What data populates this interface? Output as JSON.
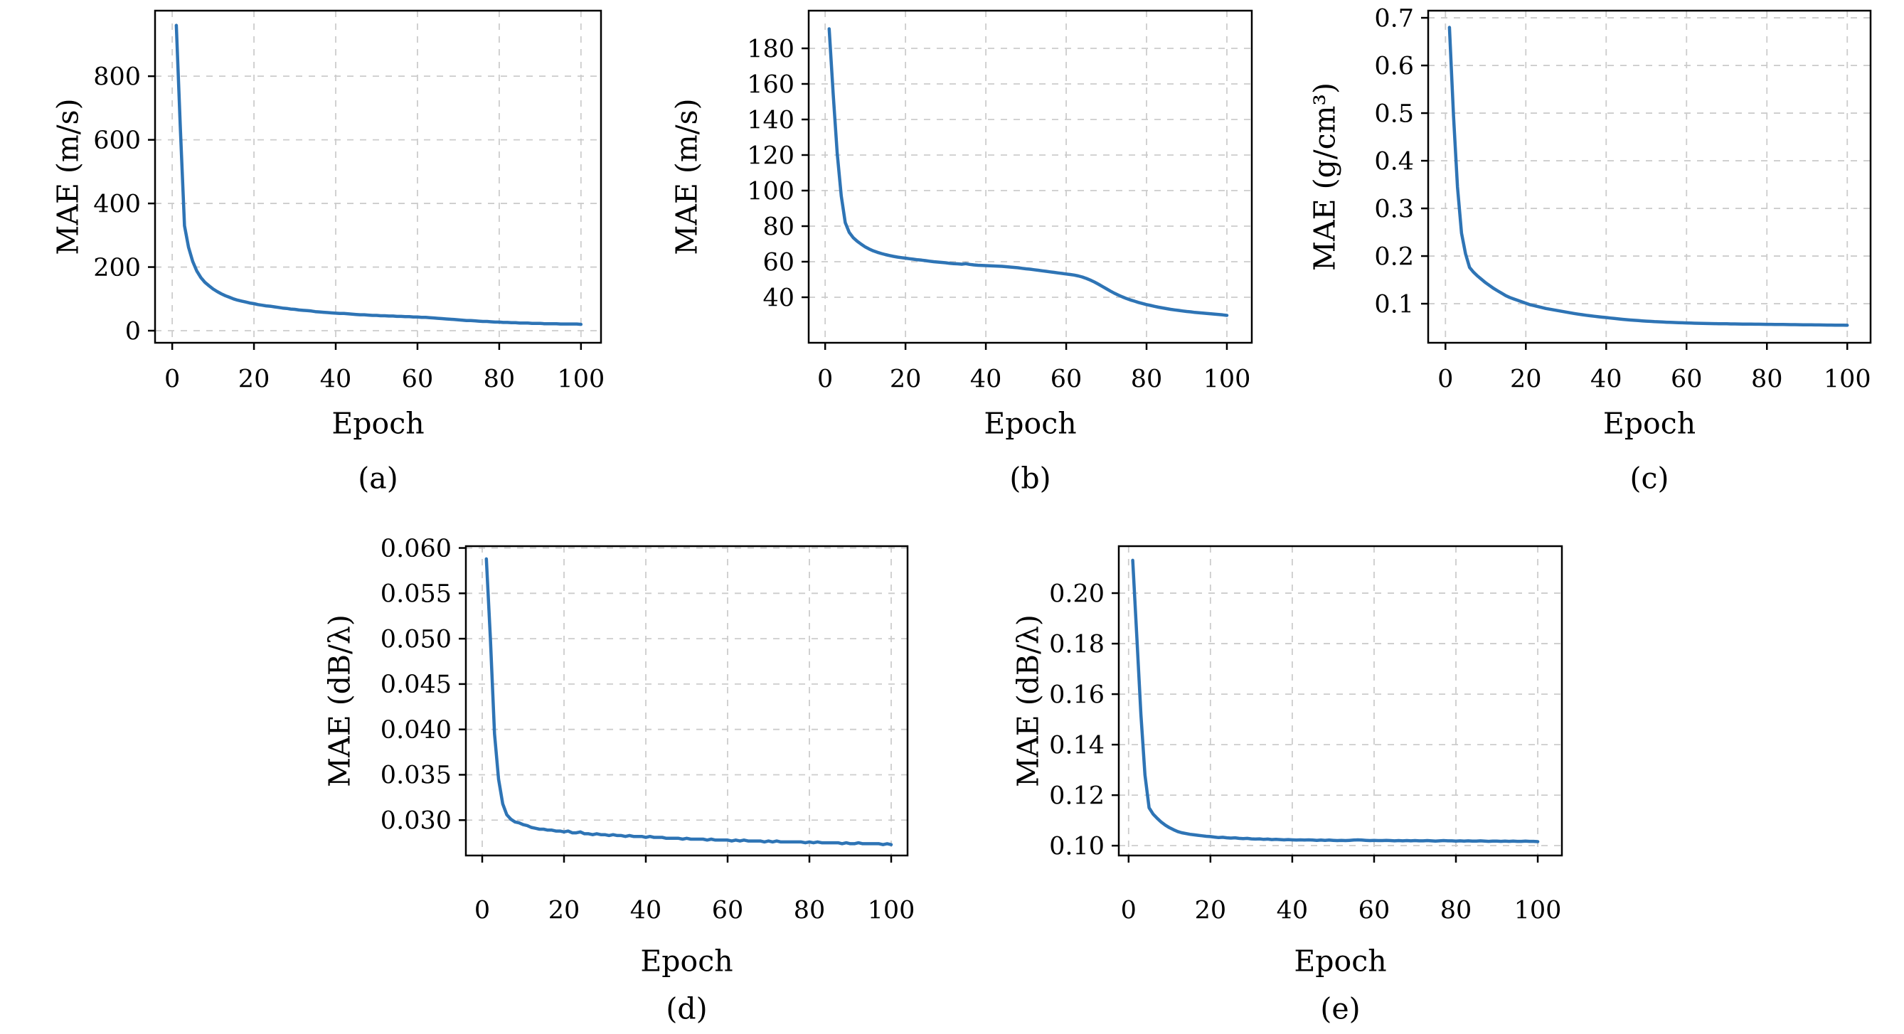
{
  "figure": {
    "description": "Training curves: mean absolute error vs epoch for five predicted quantities",
    "background_color": "#ffffff",
    "line_color": "#2e74b5",
    "grid_color": "#cccccc",
    "axis_color": "#000000",
    "epochs": [
      1,
      2,
      3,
      4,
      5,
      6,
      7,
      8,
      9,
      10,
      11,
      12,
      13,
      14,
      15,
      16,
      17,
      18,
      19,
      20,
      21,
      22,
      23,
      24,
      25,
      26,
      27,
      28,
      29,
      30,
      31,
      32,
      33,
      34,
      35,
      36,
      37,
      38,
      39,
      40,
      41,
      42,
      43,
      44,
      45,
      46,
      47,
      48,
      49,
      50,
      51,
      52,
      53,
      54,
      55,
      56,
      57,
      58,
      59,
      60,
      61,
      62,
      63,
      64,
      65,
      66,
      67,
      68,
      69,
      70,
      71,
      72,
      73,
      74,
      75,
      76,
      77,
      78,
      79,
      80,
      81,
      82,
      83,
      84,
      85,
      86,
      87,
      88,
      89,
      90,
      91,
      92,
      93,
      94,
      95,
      96,
      97,
      98,
      99,
      100
    ]
  },
  "chart_data": [
    {
      "id": "a",
      "type": "line",
      "caption": "(a)",
      "xlabel": "Epoch",
      "ylabel": "MAE (m/s)",
      "xlim": [
        -4.2,
        104.9
      ],
      "ylim": [
        -38,
        1006
      ],
      "xticks": [
        0,
        20,
        40,
        60,
        80,
        100
      ],
      "xtick_labels": [
        "0",
        "20",
        "40",
        "60",
        "80",
        "100"
      ],
      "yticks": [
        0,
        200,
        400,
        600,
        800
      ],
      "ytick_labels": [
        "0",
        "200",
        "400",
        "600",
        "800"
      ],
      "grid": true,
      "legend": null,
      "series": [
        {
          "name": "MAE (m/s) vs epoch",
          "y": [
            960,
            635,
            330,
            262,
            218,
            188,
            167,
            152,
            141,
            131,
            123,
            116,
            110,
            105,
            100,
            96,
            93,
            90,
            87,
            85,
            82,
            80,
            78,
            77,
            75,
            73,
            71,
            70,
            68,
            67,
            65,
            64,
            63,
            62,
            60,
            59,
            58,
            57,
            56,
            55,
            54,
            54,
            53,
            52,
            51,
            50,
            50,
            49,
            48,
            48,
            47,
            47,
            46,
            46,
            45,
            45,
            44,
            44,
            43,
            43,
            42,
            42,
            41,
            40,
            39,
            38,
            37,
            36,
            35,
            34,
            33,
            32,
            32,
            31,
            30,
            29,
            29,
            28,
            27,
            27,
            26,
            26,
            25,
            25,
            24,
            24,
            24,
            23,
            23,
            23,
            22,
            22,
            22,
            22,
            21,
            21,
            21,
            21,
            21,
            20
          ]
        }
      ]
    },
    {
      "id": "b",
      "type": "line",
      "caption": "(b)",
      "xlabel": "Epoch",
      "ylabel": "MAE (m/s)",
      "xlim": [
        -4.1,
        106.2
      ],
      "ylim": [
        14.4,
        201.2
      ],
      "xticks": [
        0,
        20,
        40,
        60,
        80,
        100
      ],
      "xtick_labels": [
        "0",
        "20",
        "40",
        "60",
        "80",
        "100"
      ],
      "yticks": [
        40,
        60,
        80,
        100,
        120,
        140,
        160,
        180
      ],
      "ytick_labels": [
        "40",
        "60",
        "80",
        "100",
        "120",
        "140",
        "160",
        "180"
      ],
      "grid": true,
      "legend": null,
      "series": [
        {
          "name": "MAE (m/s) vs epoch",
          "y": [
            191,
            154,
            121,
            97,
            82,
            76.5,
            73.5,
            71.5,
            69.8,
            68.3,
            67.1,
            66.1,
            65.3,
            64.6,
            64.0,
            63.5,
            63.0,
            62.6,
            62.3,
            62.0,
            61.7,
            61.4,
            61.1,
            60.9,
            60.6,
            60.3,
            60.0,
            59.8,
            59.6,
            59.4,
            59.1,
            58.9,
            58.8,
            58.6,
            58.9,
            58.5,
            58.2,
            58.0,
            57.9,
            57.8,
            57.7,
            57.6,
            57.5,
            57.4,
            57.2,
            57.0,
            56.8,
            56.6,
            56.3,
            56.0,
            55.8,
            55.5,
            55.2,
            54.9,
            54.6,
            54.3,
            54.0,
            53.7,
            53.4,
            53.1,
            52.8,
            52.5,
            52.0,
            51.4,
            50.6,
            49.7,
            48.6,
            47.4,
            46.1,
            44.8,
            43.5,
            42.3,
            41.2,
            40.2,
            39.3,
            38.5,
            37.8,
            37.1,
            36.5,
            35.9,
            35.4,
            34.9,
            34.4,
            34.0,
            33.6,
            33.2,
            32.9,
            32.6,
            32.3,
            32.0,
            31.8,
            31.5,
            31.3,
            31.1,
            30.9,
            30.7,
            30.5,
            30.3,
            30.1,
            29.8
          ]
        }
      ]
    },
    {
      "id": "c",
      "type": "line",
      "caption": "(c)",
      "xlabel": "Epoch",
      "ylabel": "MAE (g/cm³)",
      "xlim": [
        -4.3,
        105.8
      ],
      "ylim": [
        0.018,
        0.715
      ],
      "xticks": [
        0,
        20,
        40,
        60,
        80,
        100
      ],
      "xtick_labels": [
        "0",
        "20",
        "40",
        "60",
        "80",
        "100"
      ],
      "yticks": [
        0.1,
        0.2,
        0.3,
        0.4,
        0.5,
        0.6,
        0.7
      ],
      "ytick_labels": [
        "0.1",
        "0.2",
        "0.3",
        "0.4",
        "0.5",
        "0.6",
        "0.7"
      ],
      "grid": true,
      "legend": null,
      "series": [
        {
          "name": "MAE (g/cm3) vs epoch",
          "y": [
            0.68,
            0.495,
            0.345,
            0.248,
            0.205,
            0.176,
            0.166,
            0.158,
            0.151,
            0.144,
            0.138,
            0.132,
            0.127,
            0.122,
            0.117,
            0.113,
            0.11,
            0.107,
            0.104,
            0.101,
            0.098,
            0.096,
            0.094,
            0.092,
            0.09,
            0.0885,
            0.087,
            0.0855,
            0.084,
            0.0825,
            0.081,
            0.0795,
            0.0782,
            0.077,
            0.0758,
            0.0747,
            0.0737,
            0.0727,
            0.0718,
            0.071,
            0.07,
            0.069,
            0.0681,
            0.0673,
            0.0665,
            0.0658,
            0.0651,
            0.0645,
            0.0639,
            0.0634,
            0.0629,
            0.0624,
            0.062,
            0.0616,
            0.0612,
            0.0608,
            0.0605,
            0.0602,
            0.0599,
            0.0596,
            0.0594,
            0.0591,
            0.0589,
            0.0587,
            0.0585,
            0.0583,
            0.0582,
            0.058,
            0.0579,
            0.0578,
            0.0576,
            0.0575,
            0.0574,
            0.0573,
            0.0572,
            0.0571,
            0.057,
            0.0569,
            0.0568,
            0.0567,
            0.0566,
            0.0565,
            0.0564,
            0.0563,
            0.0562,
            0.0561,
            0.056,
            0.0559,
            0.0558,
            0.0557,
            0.0556,
            0.0555,
            0.0554,
            0.0553,
            0.0552,
            0.0551,
            0.055,
            0.0549,
            0.0548,
            0.0547
          ]
        }
      ]
    },
    {
      "id": "d",
      "type": "line",
      "caption": "(d)",
      "xlabel": "Epoch",
      "ylabel": "MAE (dB/λ)",
      "xlim": [
        -4.0,
        104.0
      ],
      "ylim": [
        0.0261,
        0.0602
      ],
      "xticks": [
        0,
        20,
        40,
        60,
        80,
        100
      ],
      "xtick_labels": [
        "0",
        "20",
        "40",
        "60",
        "80",
        "100"
      ],
      "yticks": [
        0.03,
        0.035,
        0.04,
        0.045,
        0.05,
        0.055,
        0.06
      ],
      "ytick_labels": [
        "0.030",
        "0.035",
        "0.040",
        "0.045",
        "0.050",
        "0.055",
        "0.060"
      ],
      "grid": true,
      "legend": null,
      "series": [
        {
          "name": "MAE (dB/lambda) vs epoch",
          "y": [
            0.0588,
            0.05,
            0.0395,
            0.0345,
            0.0318,
            0.0306,
            0.0301,
            0.0298,
            0.0297,
            0.0295,
            0.0294,
            0.0292,
            0.0291,
            0.029,
            0.029,
            0.0289,
            0.0289,
            0.0288,
            0.0288,
            0.0287,
            0.0288,
            0.0286,
            0.0286,
            0.0287,
            0.0285,
            0.0285,
            0.0284,
            0.0285,
            0.0284,
            0.0284,
            0.0283,
            0.0284,
            0.0283,
            0.0283,
            0.0282,
            0.0283,
            0.0282,
            0.0282,
            0.0282,
            0.0281,
            0.0282,
            0.0281,
            0.0281,
            0.0281,
            0.028,
            0.028,
            0.028,
            0.028,
            0.0279,
            0.028,
            0.0279,
            0.0279,
            0.0279,
            0.0279,
            0.0278,
            0.0279,
            0.0278,
            0.0278,
            0.0278,
            0.0278,
            0.0277,
            0.0278,
            0.0277,
            0.0278,
            0.0277,
            0.0277,
            0.0277,
            0.0277,
            0.0276,
            0.0277,
            0.0276,
            0.0277,
            0.0276,
            0.0276,
            0.0276,
            0.0276,
            0.0276,
            0.0276,
            0.0275,
            0.0276,
            0.0275,
            0.0276,
            0.0275,
            0.0275,
            0.0275,
            0.0275,
            0.0275,
            0.0274,
            0.0275,
            0.0274,
            0.0274,
            0.0275,
            0.0274,
            0.0274,
            0.0274,
            0.0274,
            0.0274,
            0.0273,
            0.0274,
            0.0273
          ]
        }
      ]
    },
    {
      "id": "e",
      "type": "line",
      "caption": "(e)",
      "xlabel": "Epoch",
      "ylabel": "MAE (dB/λ)",
      "xlim": [
        -2.4,
        105.9
      ],
      "ylim": [
        0.0961,
        0.2186
      ],
      "xticks": [
        0,
        20,
        40,
        60,
        80,
        100
      ],
      "xtick_labels": [
        "0",
        "20",
        "40",
        "60",
        "80",
        "100"
      ],
      "yticks": [
        0.1,
        0.12,
        0.14,
        0.16,
        0.18,
        0.2
      ],
      "ytick_labels": [
        "0.10",
        "0.12",
        "0.14",
        "0.16",
        "0.18",
        "0.20"
      ],
      "grid": true,
      "legend": null,
      "series": [
        {
          "name": "MAE (dB/lambda) vs epoch",
          "y": [
            0.213,
            0.183,
            0.152,
            0.128,
            0.115,
            0.1125,
            0.1108,
            0.1093,
            0.1081,
            0.1071,
            0.1063,
            0.1056,
            0.1051,
            0.1048,
            0.1045,
            0.1043,
            0.1041,
            0.1039,
            0.1037,
            0.1036,
            0.1034,
            0.1032,
            0.1033,
            0.1031,
            0.103,
            0.1031,
            0.1029,
            0.1028,
            0.1029,
            0.1027,
            0.1026,
            0.1027,
            0.1025,
            0.1026,
            0.1024,
            0.1025,
            0.1024,
            0.1023,
            0.1024,
            0.1023,
            0.1022,
            0.1023,
            0.1022,
            0.1023,
            0.1022,
            0.1021,
            0.1022,
            0.1021,
            0.1022,
            0.1021,
            0.102,
            0.1021,
            0.102,
            0.1021,
            0.1022,
            0.1023,
            0.1022,
            0.1021,
            0.102,
            0.1021,
            0.102,
            0.102,
            0.1021,
            0.102,
            0.1019,
            0.102,
            0.1019,
            0.102,
            0.1019,
            0.102,
            0.1019,
            0.1019,
            0.102,
            0.1019,
            0.1018,
            0.1019,
            0.102,
            0.1019,
            0.1019,
            0.1018,
            0.1019,
            0.1018,
            0.1019,
            0.1018,
            0.1018,
            0.1019,
            0.1018,
            0.1017,
            0.1018,
            0.1018,
            0.1017,
            0.1018,
            0.1017,
            0.1018,
            0.1017,
            0.1017,
            0.1018,
            0.1017,
            0.1017,
            0.1016
          ]
        }
      ]
    }
  ]
}
